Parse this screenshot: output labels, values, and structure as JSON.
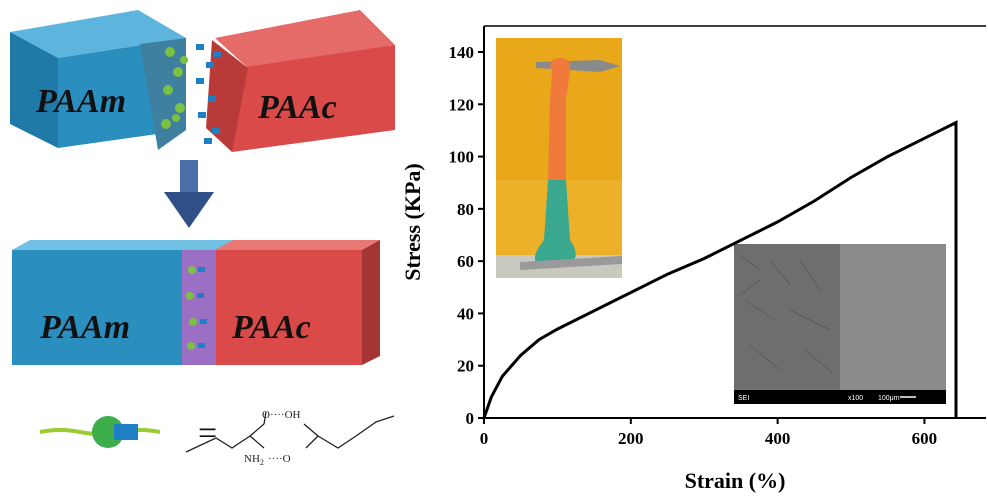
{
  "scheme": {
    "block_left": "PAAm",
    "block_right": "PAAc",
    "block_left_joined": "PAAm",
    "block_right_joined": "PAAc",
    "equals": "=",
    "chem": {
      "oh": "O····OH",
      "nh": "NH",
      "nh_sub": "2",
      "o": "····O"
    },
    "colors": {
      "paam": "#2a8fbf",
      "paac": "#d94a48",
      "interface": "#9b6fc4",
      "arrow": "#2f4f86",
      "host": "#7cc242",
      "guest": "#1f7fc4"
    }
  },
  "chart_data": {
    "type": "line",
    "xlabel": "Strain (%)",
    "ylabel": "Stress (KPa)",
    "xlim": [
      0,
      700
    ],
    "ylim": [
      0,
      150
    ],
    "xticks": [
      0,
      200,
      400,
      600
    ],
    "yticks": [
      0,
      20,
      40,
      60,
      80,
      100,
      120,
      140
    ],
    "series": [
      {
        "x": [
          0,
          10,
          25,
          50,
          75,
          100,
          150,
          200,
          250,
          300,
          350,
          400,
          450,
          500,
          550,
          600,
          643,
          643
        ],
        "y": [
          0,
          8,
          16,
          24,
          30,
          34,
          41,
          48,
          55,
          61,
          68,
          75,
          83,
          92,
          100,
          107,
          113,
          0
        ],
        "color": "#000000"
      }
    ],
    "insets": [
      {
        "type": "photo",
        "description": "hydrogel"
      },
      {
        "type": "sem",
        "caption_left": "SEI",
        "caption_mid": "x100",
        "caption_right": "100μm"
      }
    ]
  }
}
